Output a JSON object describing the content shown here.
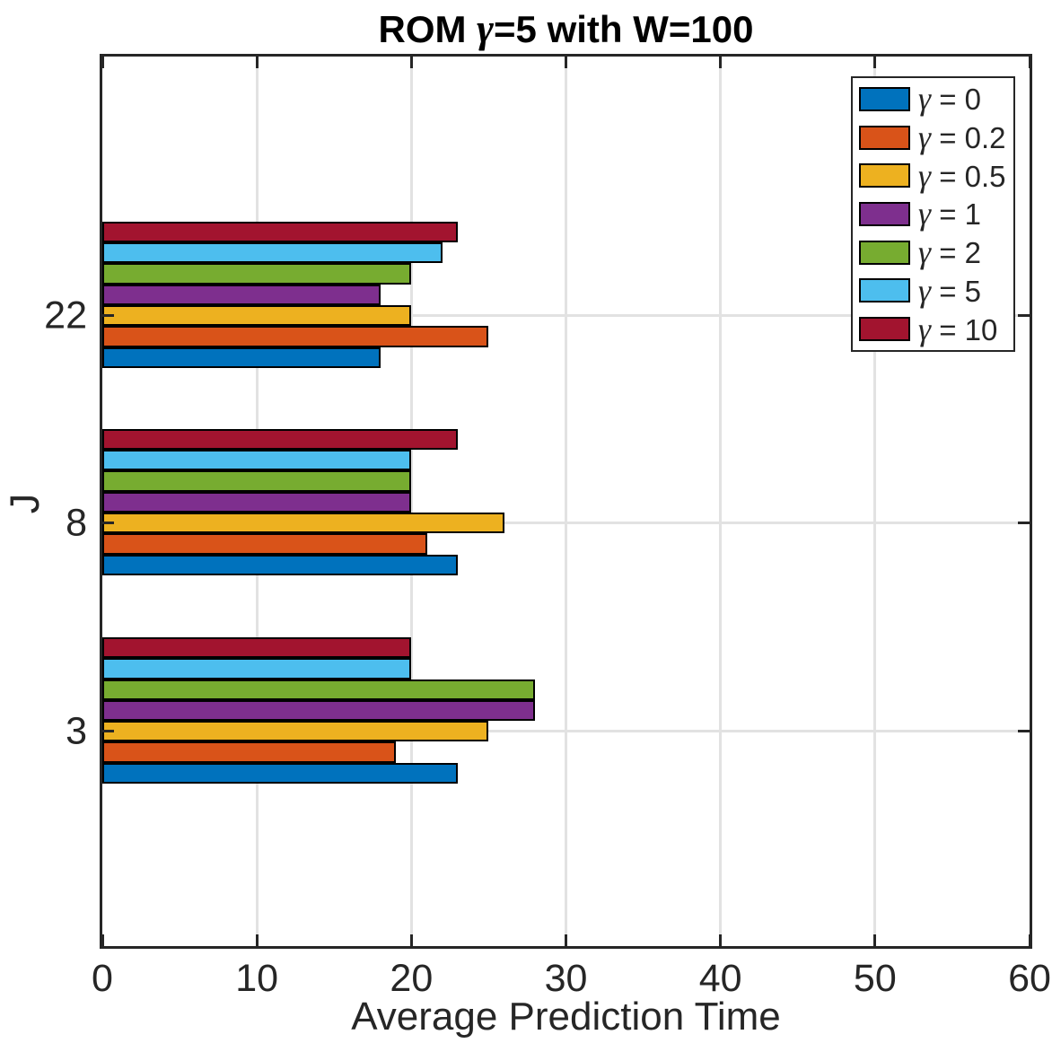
{
  "chart_data": {
    "type": "bar",
    "orientation": "horizontal",
    "title": "ROM γ=5 with W=100",
    "xlabel": "Average Prediction Time",
    "ylabel": "J",
    "xlim": [
      0,
      60
    ],
    "xticks": [
      0,
      10,
      20,
      30,
      40,
      50,
      60
    ],
    "categories": [
      "3",
      "8",
      "22"
    ],
    "grid": true,
    "legend_position": "northeast",
    "bar_edge_color": "#000000",
    "axis_color": "#262626",
    "grid_color": "#e2e2e2",
    "series": [
      {
        "name": "γ = 0",
        "color": "#0072BD",
        "values": [
          23,
          23,
          18
        ]
      },
      {
        "name": "γ = 0.2",
        "color": "#D95319",
        "values": [
          19,
          21,
          25
        ]
      },
      {
        "name": "γ = 0.5",
        "color": "#EDB120",
        "values": [
          25,
          26,
          20
        ]
      },
      {
        "name": "γ = 1",
        "color": "#7E2F8E",
        "values": [
          28,
          20,
          18
        ]
      },
      {
        "name": "γ = 2",
        "color": "#77AC30",
        "values": [
          28,
          20,
          20
        ]
      },
      {
        "name": "γ = 5",
        "color": "#4DBEEE",
        "values": [
          20,
          20,
          22
        ]
      },
      {
        "name": "γ = 10",
        "color": "#A2142F",
        "values": [
          20,
          23,
          23
        ]
      }
    ]
  }
}
